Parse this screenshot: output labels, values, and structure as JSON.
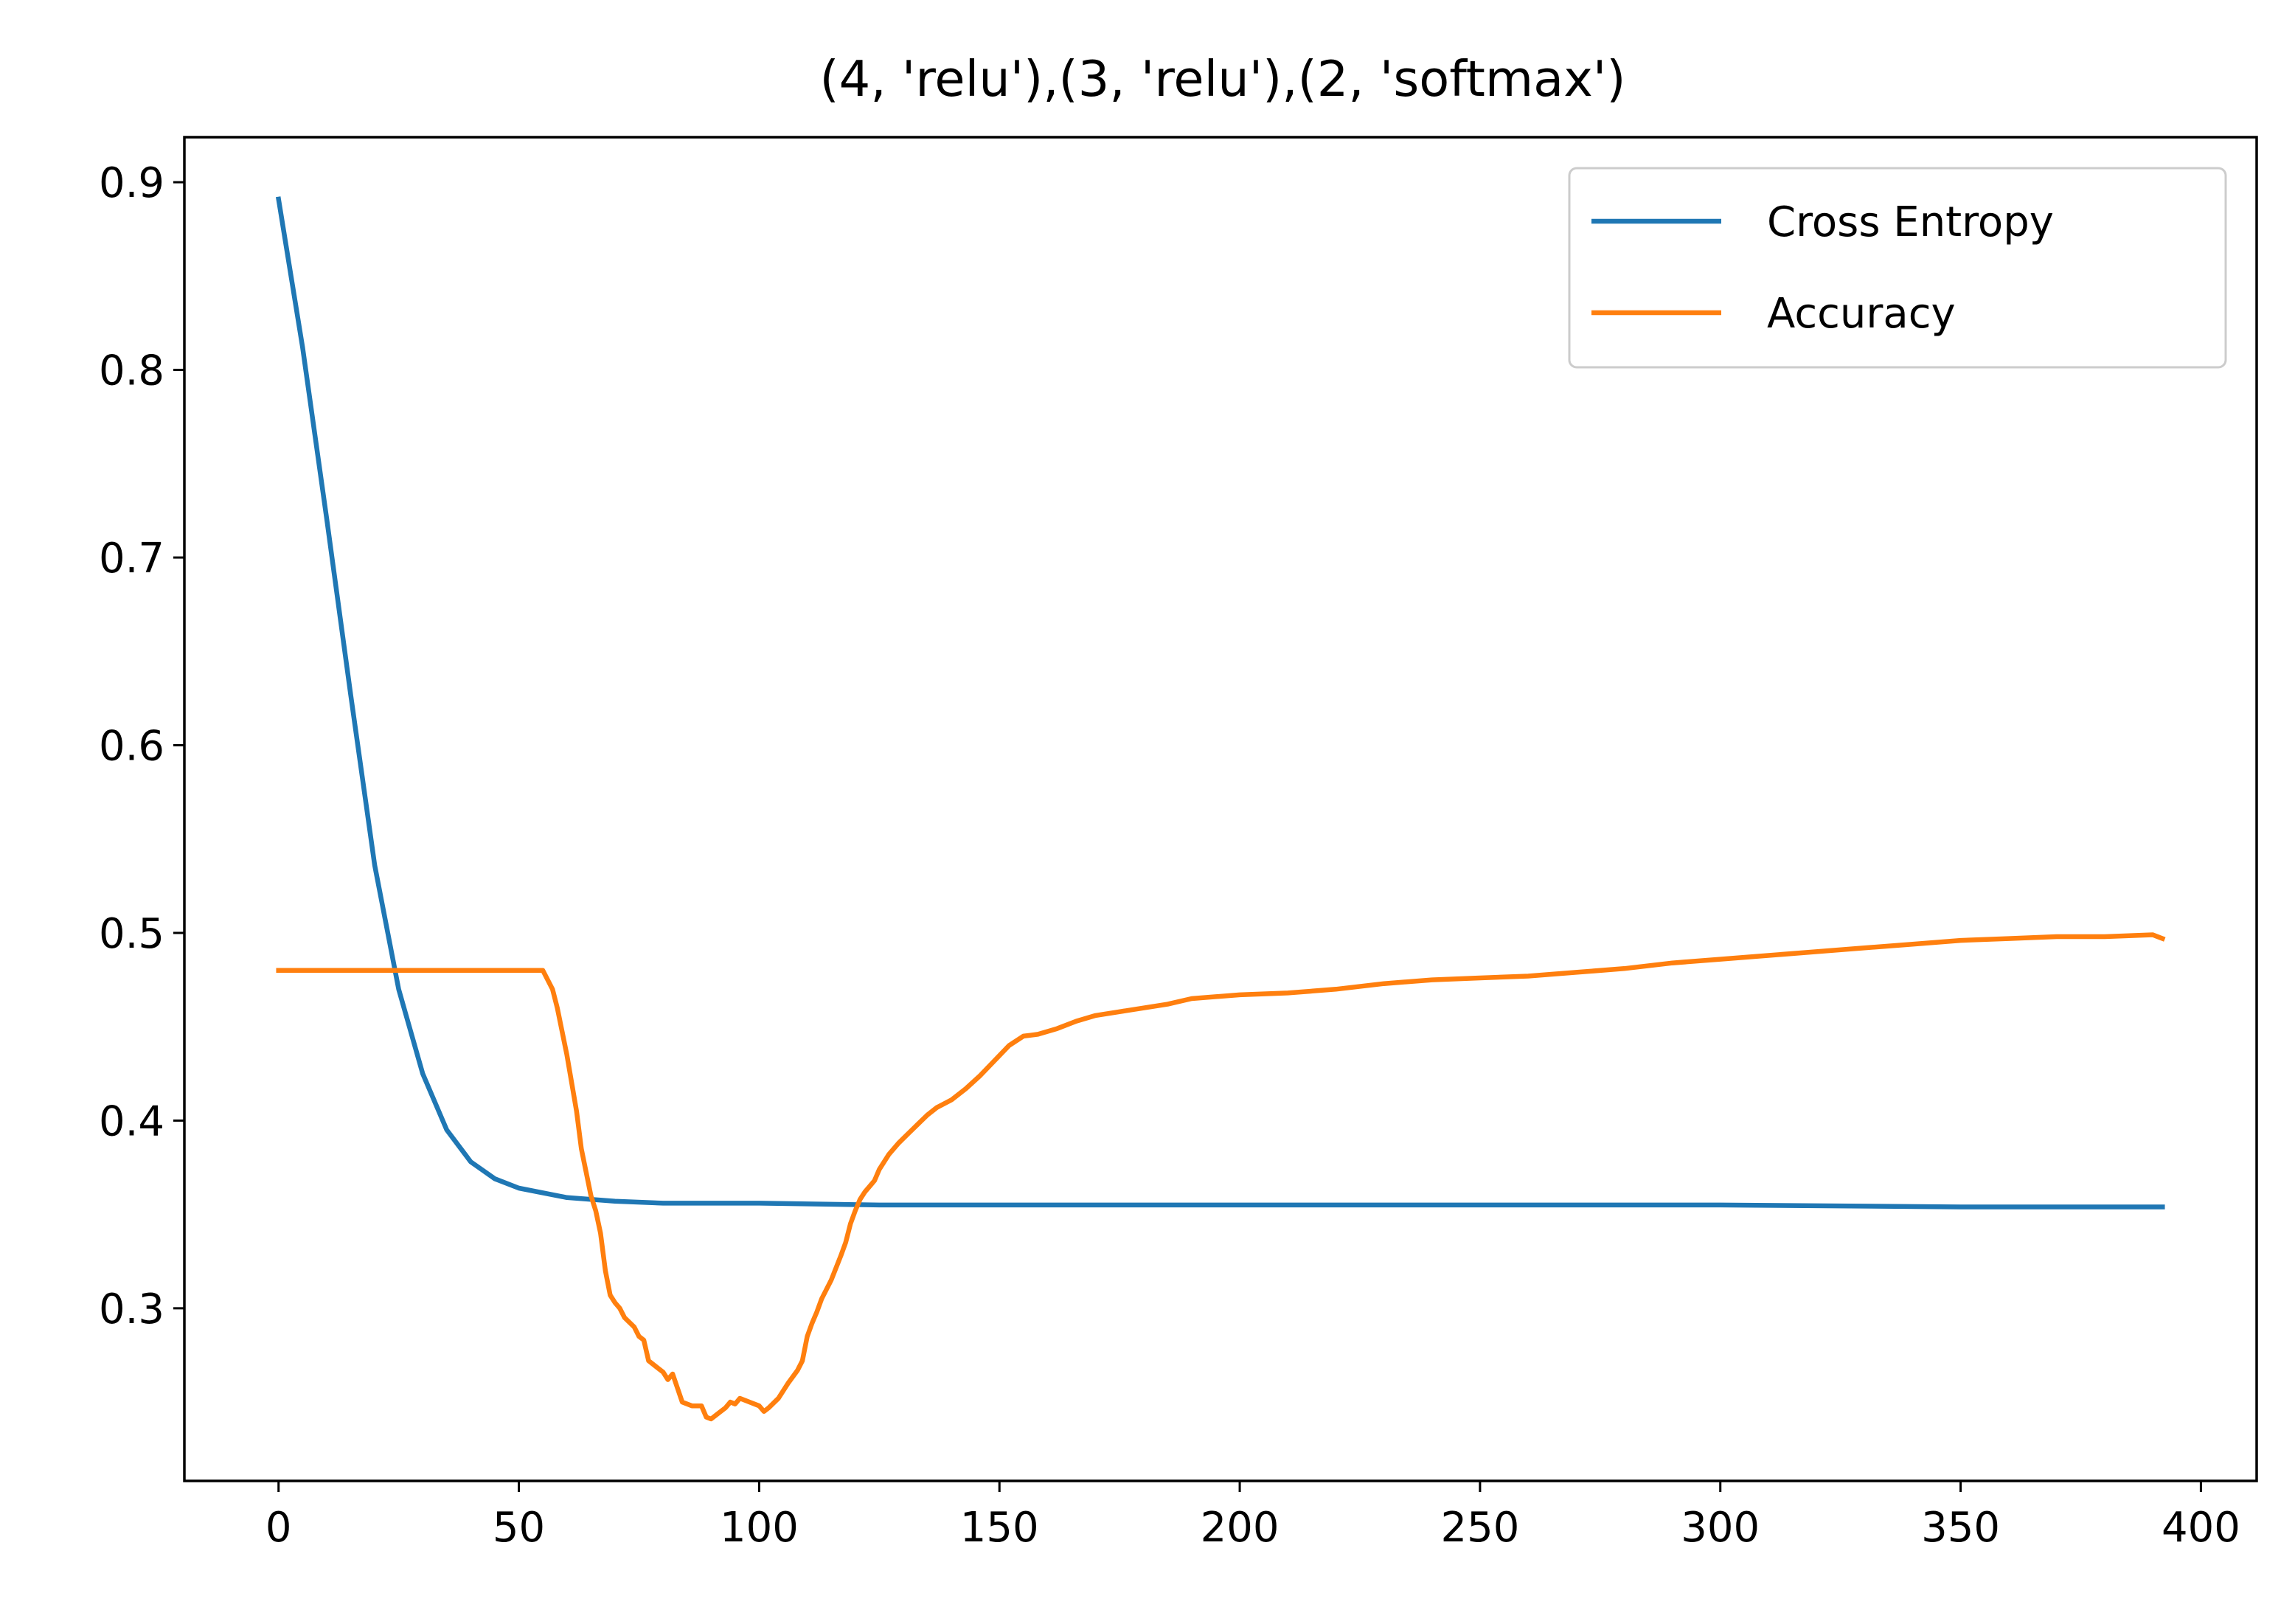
{
  "chart_data": {
    "type": "line",
    "title": "(4, 'relu'),(3, 'relu'),(2, 'softmax')",
    "xlabel": "",
    "ylabel": "",
    "xlim": [
      -19.6,
      411.6
    ],
    "ylim": [
      0.208,
      0.924
    ],
    "xticks": [
      0,
      50,
      100,
      150,
      200,
      250,
      300,
      350,
      400
    ],
    "xtick_labels": [
      "0",
      "50",
      "100",
      "150",
      "200",
      "250",
      "300",
      "350",
      "400"
    ],
    "yticks": [
      0.3,
      0.4,
      0.5,
      0.6,
      0.7,
      0.8,
      0.9
    ],
    "ytick_labels": [
      "0.3",
      "0.4",
      "0.5",
      "0.6",
      "0.7",
      "0.8",
      "0.9"
    ],
    "grid": false,
    "legend_position": "upper right",
    "series": [
      {
        "name": "Cross Entropy",
        "color": "#1f77b4",
        "x": [
          0,
          5,
          10,
          15,
          20,
          25,
          30,
          35,
          40,
          45,
          50,
          60,
          70,
          80,
          100,
          125,
          150,
          200,
          250,
          300,
          350,
          392
        ],
        "y": [
          0.891,
          0.812,
          0.721,
          0.627,
          0.536,
          0.47,
          0.425,
          0.395,
          0.378,
          0.369,
          0.364,
          0.359,
          0.357,
          0.356,
          0.356,
          0.355,
          0.355,
          0.355,
          0.355,
          0.355,
          0.354,
          0.354
        ]
      },
      {
        "name": "Accuracy",
        "color": "#ff7f0e",
        "x": [
          0,
          20,
          40,
          55,
          57,
          58,
          60,
          62,
          63,
          65,
          66,
          67,
          68,
          69,
          70,
          71,
          72,
          74,
          75,
          76,
          77,
          78,
          79,
          80,
          81,
          82,
          84,
          86,
          88,
          89,
          90,
          91,
          92,
          93,
          94,
          95,
          96,
          98,
          100,
          101,
          102,
          104,
          106,
          108,
          109,
          110,
          111,
          112,
          113,
          115,
          117,
          118,
          119,
          120,
          121,
          122,
          123,
          124,
          125,
          127,
          129,
          131,
          133,
          135,
          137,
          140,
          143,
          146,
          149,
          152,
          155,
          158,
          162,
          166,
          170,
          175,
          180,
          185,
          190,
          200,
          210,
          220,
          230,
          240,
          250,
          260,
          270,
          280,
          290,
          300,
          310,
          320,
          330,
          340,
          350,
          360,
          370,
          380,
          390,
          392
        ],
        "y": [
          0.48,
          0.48,
          0.48,
          0.48,
          0.47,
          0.46,
          0.435,
          0.405,
          0.385,
          0.36,
          0.352,
          0.34,
          0.32,
          0.307,
          0.303,
          0.3,
          0.295,
          0.29,
          0.285,
          0.283,
          0.272,
          0.27,
          0.268,
          0.266,
          0.262,
          0.265,
          0.25,
          0.248,
          0.248,
          0.242,
          0.241,
          0.243,
          0.245,
          0.247,
          0.25,
          0.249,
          0.252,
          0.25,
          0.248,
          0.245,
          0.247,
          0.252,
          0.26,
          0.267,
          0.272,
          0.285,
          0.292,
          0.298,
          0.305,
          0.315,
          0.328,
          0.335,
          0.345,
          0.352,
          0.358,
          0.362,
          0.365,
          0.368,
          0.374,
          0.382,
          0.388,
          0.393,
          0.398,
          0.403,
          0.407,
          0.411,
          0.417,
          0.424,
          0.432,
          0.44,
          0.445,
          0.446,
          0.449,
          0.453,
          0.456,
          0.458,
          0.46,
          0.462,
          0.465,
          0.467,
          0.468,
          0.47,
          0.473,
          0.475,
          0.476,
          0.477,
          0.479,
          0.481,
          0.484,
          0.486,
          0.488,
          0.49,
          0.492,
          0.494,
          0.496,
          0.497,
          0.498,
          0.498,
          0.499,
          0.497
        ]
      }
    ]
  }
}
